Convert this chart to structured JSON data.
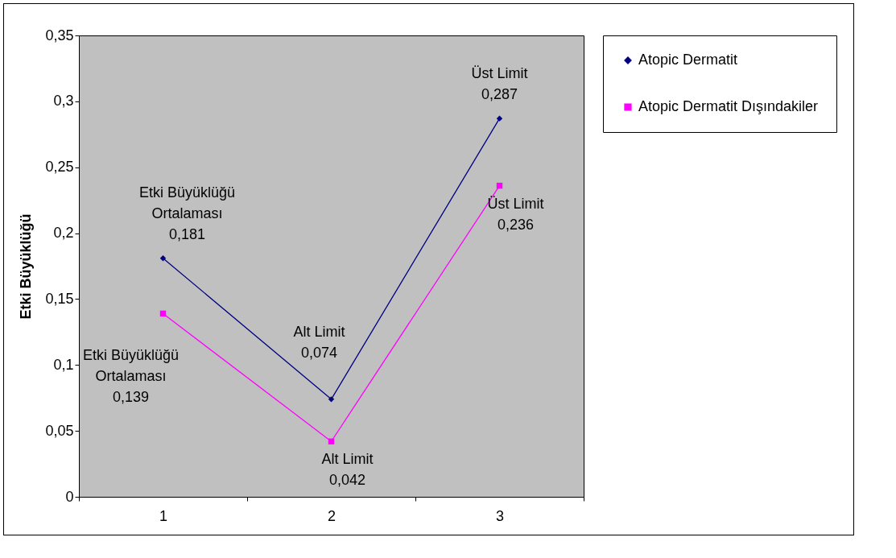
{
  "chart_data": {
    "type": "line",
    "categories": [
      "1",
      "2",
      "3"
    ],
    "series": [
      {
        "name": "Atopic Dermatit",
        "color": "#000080",
        "marker": "diamond",
        "values": [
          0.181,
          0.074,
          0.287
        ],
        "value_labels": [
          "Etki Büyüklüğü\nOrtalaması\n0,181",
          "Alt Limit\n0,074",
          "Üst Limit\n0,287"
        ]
      },
      {
        "name": "Atopic Dermatit Dışındakiler",
        "color": "#ff00ff",
        "marker": "square",
        "values": [
          0.139,
          0.042,
          0.236
        ],
        "value_labels": [
          "Etki Büyüklüğü\nOrtalaması\n0,139",
          "Alt Limit\n0,042",
          "Üst Limit\n0,236"
        ]
      }
    ],
    "ylabel": "Etki Büyüklüğü",
    "ylim": [
      0,
      0.35
    ],
    "yticks": [
      {
        "value": 0,
        "label": "0"
      },
      {
        "value": 0.05,
        "label": "0,05"
      },
      {
        "value": 0.1,
        "label": "0,1"
      },
      {
        "value": 0.15,
        "label": "0,15"
      },
      {
        "value": 0.2,
        "label": "0,2"
      },
      {
        "value": 0.25,
        "label": "0,25"
      },
      {
        "value": 0.3,
        "label": "0,3"
      },
      {
        "value": 0.35,
        "label": "0,35"
      }
    ],
    "legend": "right",
    "grid": false
  }
}
